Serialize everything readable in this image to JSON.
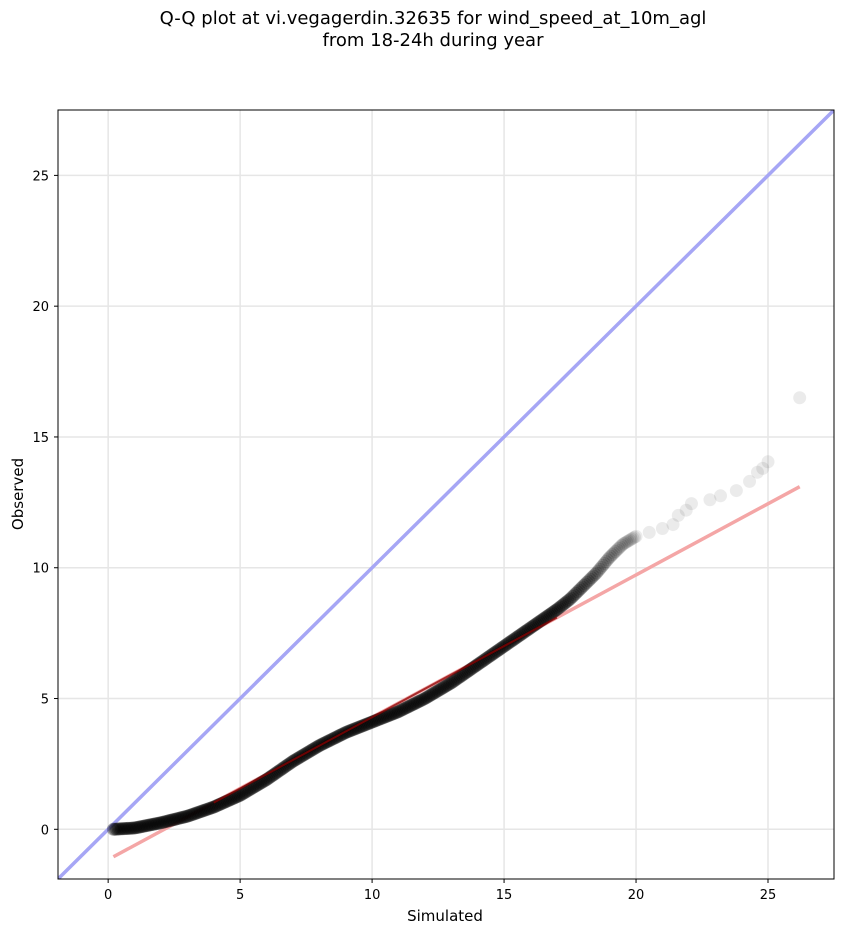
{
  "chart_data": {
    "type": "scatter",
    "title_line1": "Q-Q plot at vi.vegagerdin.32635 for wind_speed_at_10m_agl",
    "title_line2": "from 18-24h during year",
    "xlabel": "Simulated",
    "ylabel": "Observed",
    "xlim": [
      -1.9,
      27.5
    ],
    "ylim": [
      -1.9,
      27.5
    ],
    "xticks": [
      0,
      5,
      10,
      15,
      20,
      25
    ],
    "yticks": [
      0,
      5,
      10,
      15,
      20,
      25
    ],
    "grid": true,
    "colors": {
      "points": "#000000",
      "identity_line": "#a6a6f5",
      "fit_line": "#f4a6a6",
      "fit_line_dense": "#8b0000",
      "grid": "#e6e6e6"
    },
    "reference_lines": [
      {
        "kind": "identity",
        "x": [
          -1.9,
          27.5
        ],
        "y": [
          -1.9,
          27.5
        ]
      },
      {
        "kind": "linear-fit",
        "x": [
          0.2,
          26.2
        ],
        "y": [
          -1.05,
          13.1
        ]
      }
    ],
    "fit_overlay_range": [
      4.0,
      17.0
    ],
    "quantile_curve": [
      [
        0.2,
        0.0
      ],
      [
        1.0,
        0.05
      ],
      [
        2.0,
        0.25
      ],
      [
        3.0,
        0.5
      ],
      [
        4.0,
        0.85
      ],
      [
        5.0,
        1.3
      ],
      [
        6.0,
        1.9
      ],
      [
        7.0,
        2.6
      ],
      [
        8.0,
        3.2
      ],
      [
        9.0,
        3.7
      ],
      [
        10.0,
        4.1
      ],
      [
        11.0,
        4.5
      ],
      [
        12.0,
        5.0
      ],
      [
        13.0,
        5.6
      ],
      [
        14.0,
        6.3
      ],
      [
        15.0,
        7.0
      ],
      [
        16.0,
        7.7
      ],
      [
        17.0,
        8.4
      ],
      [
        17.5,
        8.8
      ],
      [
        18.0,
        9.3
      ],
      [
        18.5,
        9.8
      ],
      [
        19.0,
        10.4
      ],
      [
        19.5,
        10.9
      ],
      [
        20.0,
        11.2
      ]
    ],
    "sparse_points": [
      [
        20.5,
        11.35
      ],
      [
        21.0,
        11.5
      ],
      [
        21.4,
        11.65
      ],
      [
        21.6,
        12.0
      ],
      [
        21.9,
        12.2
      ],
      [
        22.1,
        12.45
      ],
      [
        22.8,
        12.6
      ],
      [
        23.2,
        12.75
      ],
      [
        23.8,
        12.95
      ],
      [
        24.3,
        13.3
      ],
      [
        24.6,
        13.65
      ],
      [
        24.8,
        13.8
      ],
      [
        25.0,
        14.05
      ],
      [
        26.2,
        16.5
      ]
    ]
  }
}
